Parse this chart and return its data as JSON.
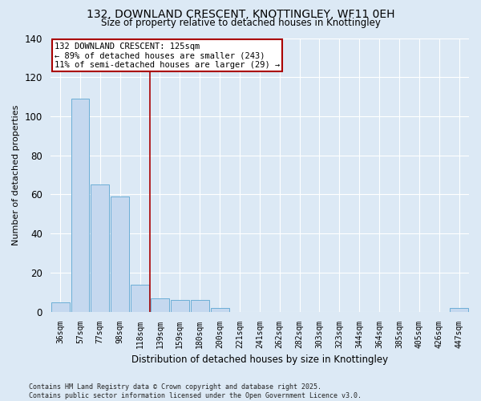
{
  "title_line1": "132, DOWNLAND CRESCENT, KNOTTINGLEY, WF11 0EH",
  "title_line2": "Size of property relative to detached houses in Knottingley",
  "xlabel": "Distribution of detached houses by size in Knottingley",
  "ylabel": "Number of detached properties",
  "categories": [
    "36sqm",
    "57sqm",
    "77sqm",
    "98sqm",
    "118sqm",
    "139sqm",
    "159sqm",
    "180sqm",
    "200sqm",
    "221sqm",
    "241sqm",
    "262sqm",
    "282sqm",
    "303sqm",
    "323sqm",
    "344sqm",
    "364sqm",
    "385sqm",
    "405sqm",
    "426sqm",
    "447sqm"
  ],
  "values": [
    5,
    109,
    65,
    59,
    14,
    7,
    6,
    6,
    2,
    0,
    0,
    0,
    0,
    0,
    0,
    0,
    0,
    0,
    0,
    0,
    2
  ],
  "bar_color": "#c5d8ef",
  "bar_edge_color": "#6baed6",
  "background_color": "#dce9f5",
  "grid_color": "#ffffff",
  "vline_x_index": 4,
  "vline_color": "#aa0000",
  "annotation_line1": "132 DOWNLAND CRESCENT: 125sqm",
  "annotation_line2": "← 89% of detached houses are smaller (243)",
  "annotation_line3": "11% of semi-detached houses are larger (29) →",
  "annotation_box_facecolor": "#ffffff",
  "annotation_box_edgecolor": "#aa0000",
  "ylim": [
    0,
    140
  ],
  "yticks": [
    0,
    20,
    40,
    60,
    80,
    100,
    120,
    140
  ],
  "footnote_line1": "Contains HM Land Registry data © Crown copyright and database right 2025.",
  "footnote_line2": "Contains public sector information licensed under the Open Government Licence v3.0."
}
